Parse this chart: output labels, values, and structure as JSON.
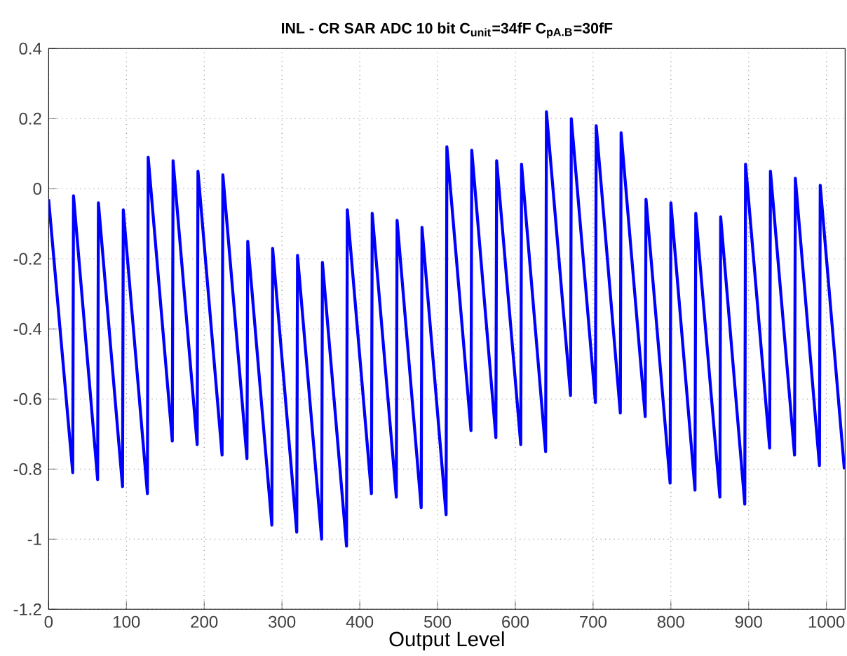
{
  "chart_data": {
    "type": "line",
    "title": "INL - CR SAR ADC 10 bit C$_{unit}$=34fF C$_{pA.B}$=30fF",
    "xlabel": "Output Level",
    "xlim": [
      0,
      1024
    ],
    "ylim": [
      -1.2,
      0.4
    ],
    "xticks": [
      0,
      100,
      200,
      300,
      400,
      500,
      600,
      700,
      800,
      900,
      1000
    ],
    "yticks": [
      -1.2,
      -1,
      -0.8,
      -0.6,
      -0.4,
      -0.2,
      0,
      0.2,
      0.4
    ],
    "grid": true,
    "marker": "none",
    "line_style": "solid",
    "series": [
      {
        "color": "#0000ff",
        "x": [
          0,
          31,
          32,
          63,
          64,
          95,
          96,
          127,
          128,
          159,
          160,
          191,
          192,
          223,
          224,
          255,
          256,
          287,
          288,
          319,
          320,
          351,
          352,
          383,
          384,
          415,
          416,
          447,
          448,
          479,
          480,
          511,
          512,
          543,
          544,
          575,
          576,
          607,
          608,
          639,
          640,
          671,
          672,
          703,
          704,
          735,
          736,
          767,
          768,
          799,
          800,
          831,
          832,
          863,
          864,
          895,
          896,
          927,
          928,
          959,
          960,
          991,
          992,
          1023
        ],
        "values": [
          -0.03,
          -0.81,
          -0.02,
          -0.83,
          -0.04,
          -0.85,
          -0.06,
          -0.87,
          0.09,
          -0.72,
          0.08,
          -0.73,
          0.05,
          -0.76,
          0.04,
          -0.77,
          -0.15,
          -0.96,
          -0.17,
          -0.98,
          -0.19,
          -1.0,
          -0.21,
          -1.02,
          -0.06,
          -0.87,
          -0.07,
          -0.88,
          -0.09,
          -0.91,
          -0.11,
          -0.93,
          0.12,
          -0.69,
          0.11,
          -0.71,
          0.08,
          -0.73,
          0.07,
          -0.75,
          0.22,
          -0.59,
          0.2,
          -0.61,
          0.18,
          -0.64,
          0.16,
          -0.65,
          -0.03,
          -0.84,
          -0.04,
          -0.86,
          -0.07,
          -0.88,
          -0.08,
          -0.9,
          0.07,
          -0.74,
          0.05,
          -0.76,
          0.03,
          -0.79,
          0.01,
          -0.8
        ]
      }
    ]
  }
}
